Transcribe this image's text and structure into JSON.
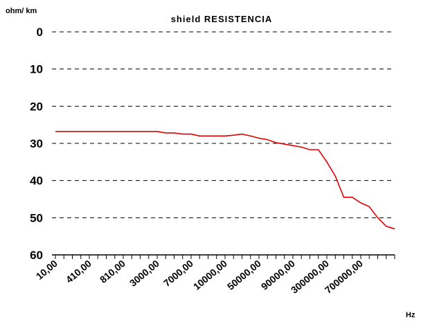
{
  "chart_data": {
    "type": "line",
    "title": "shield RESISTENCIA",
    "y_label": "ohm/ km",
    "x_label": "Hz",
    "categories": [
      "10,00",
      null,
      null,
      null,
      "410,00",
      null,
      null,
      null,
      "810,00",
      null,
      null,
      null,
      "3000,00",
      null,
      null,
      null,
      "7000,00",
      null,
      null,
      null,
      "10000,00",
      null,
      null,
      null,
      "50000,00",
      null,
      null,
      null,
      "90000,00",
      null,
      null,
      null,
      "300000,00",
      null,
      null,
      null,
      "700000,00",
      null,
      null,
      null,
      null
    ],
    "series": [
      {
        "name": "shield RESISTENCIA",
        "color": "#e00000",
        "values": [
          26.8,
          26.8,
          26.8,
          26.8,
          26.8,
          26.8,
          26.8,
          26.8,
          26.8,
          26.8,
          26.8,
          26.8,
          26.8,
          27.2,
          27.2,
          27.5,
          27.5,
          28,
          28,
          28,
          28,
          27.8,
          27.5,
          28,
          28.6,
          29,
          29.8,
          30.2,
          30.6,
          31,
          31.7,
          31.7,
          35,
          38.8,
          44.5,
          44.5,
          46,
          47,
          50,
          52.3,
          53
        ]
      }
    ],
    "ylim": [
      0,
      60
    ],
    "yticks": [
      0,
      10,
      20,
      30,
      40,
      50,
      60
    ],
    "y_inverted": true,
    "grid": true
  }
}
